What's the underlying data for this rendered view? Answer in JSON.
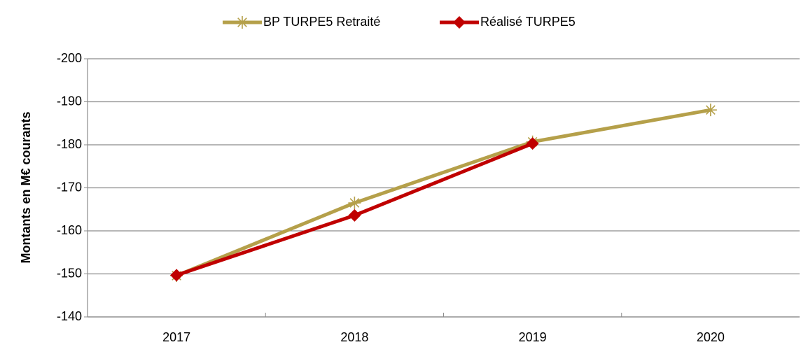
{
  "chart_data": {
    "type": "line",
    "y_axis_label": "Montants en M€ courants",
    "categories": [
      "2017",
      "2018",
      "2019",
      "2020"
    ],
    "series": [
      {
        "name": "BP TURPE5 Retraité",
        "color": "#b5a04a",
        "marker": "asterisk",
        "values": [
          -149.6,
          -166.5,
          -180.7,
          -188.1
        ]
      },
      {
        "name": "Réalisé TURPE5",
        "color": "#c00000",
        "marker": "diamond",
        "values": [
          -149.7,
          -163.6,
          -180.3,
          null
        ]
      }
    ],
    "ylim": [
      -140,
      -200
    ],
    "yticks": [
      -140,
      -150,
      -160,
      -170,
      -180,
      -190,
      -200
    ],
    "grid": true,
    "legend": "top"
  }
}
